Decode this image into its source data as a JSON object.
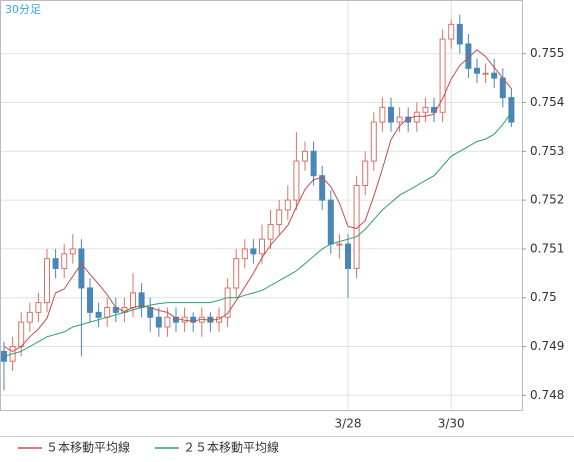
{
  "chart_data": {
    "type": "candlestick",
    "title": "30分足",
    "categories": [
      null,
      null,
      null,
      null,
      null,
      null,
      null,
      null,
      null,
      null,
      null,
      null,
      null,
      null,
      null,
      null,
      null,
      null,
      null,
      null,
      null,
      null,
      null,
      null,
      null,
      null,
      null,
      null,
      null,
      null,
      null,
      null,
      null,
      null,
      null,
      null,
      null,
      null,
      null,
      null,
      "3/28",
      null,
      null,
      null,
      null,
      null,
      null,
      null,
      null,
      null,
      null,
      null,
      "3/30",
      null,
      null,
      null,
      null,
      null,
      null,
      null
    ],
    "open": [
      0.7489,
      0.7487,
      0.749,
      0.7495,
      0.7497,
      0.7499,
      0.7508,
      0.7506,
      0.7509,
      0.751,
      0.7502,
      0.7497,
      0.7496,
      0.7498,
      0.7497,
      0.7498,
      0.7501,
      0.7498,
      0.7496,
      0.7494,
      0.7496,
      0.7495,
      0.7496,
      0.7495,
      0.7496,
      0.7495,
      0.7496,
      0.7502,
      0.7508,
      0.751,
      0.7509,
      0.7512,
      0.7515,
      0.7518,
      0.752,
      0.7528,
      0.753,
      0.7525,
      0.752,
      0.7511,
      0.7511,
      0.7506,
      0.7523,
      0.7528,
      0.7536,
      0.7539,
      0.7536,
      0.7537,
      0.7536,
      0.7538,
      0.7539,
      0.7538,
      0.7553,
      0.7556,
      0.7552,
      0.7547,
      0.7546,
      0.7546,
      0.7545,
      0.7541
    ],
    "high": [
      0.7491,
      0.7492,
      0.7497,
      0.7499,
      0.7501,
      0.751,
      0.751,
      0.7511,
      0.7513,
      0.7512,
      0.7504,
      0.7499,
      0.75,
      0.75,
      0.75,
      0.7505,
      0.7503,
      0.75,
      0.7498,
      0.7498,
      0.7498,
      0.7498,
      0.7497,
      0.7498,
      0.7497,
      0.7498,
      0.7504,
      0.751,
      0.7512,
      0.7512,
      0.7515,
      0.7518,
      0.752,
      0.7523,
      0.7534,
      0.7532,
      0.7532,
      0.7527,
      0.7522,
      0.7513,
      0.7513,
      0.7525,
      0.753,
      0.7538,
      0.7541,
      0.7541,
      0.7539,
      0.7539,
      0.754,
      0.7541,
      0.7541,
      0.7555,
      0.7557,
      0.7558,
      0.7554,
      0.7549,
      0.7548,
      0.7549,
      0.7547,
      0.7543
    ],
    "low": [
      0.7481,
      0.7485,
      0.7488,
      0.7493,
      0.7495,
      0.7497,
      0.7504,
      0.7504,
      0.7507,
      0.7488,
      0.7495,
      0.7494,
      0.7494,
      0.7495,
      0.7495,
      0.7496,
      0.7496,
      0.7493,
      0.7492,
      0.7492,
      0.7493,
      0.7493,
      0.7493,
      0.7492,
      0.7493,
      0.7493,
      0.7494,
      0.75,
      0.7506,
      0.7507,
      0.7507,
      0.751,
      0.7513,
      0.7516,
      0.7518,
      0.7526,
      0.7523,
      0.7518,
      0.7509,
      0.7508,
      0.75,
      0.7504,
      0.7521,
      0.7526,
      0.7534,
      0.7534,
      0.7534,
      0.7534,
      0.7534,
      0.7536,
      0.7536,
      0.7536,
      0.7551,
      0.755,
      0.7545,
      0.7544,
      0.7544,
      0.7543,
      0.7539,
      0.7535
    ],
    "close": [
      0.7487,
      0.749,
      0.7495,
      0.7497,
      0.7499,
      0.7508,
      0.7506,
      0.7509,
      0.751,
      0.7502,
      0.7497,
      0.7496,
      0.7498,
      0.7497,
      0.7498,
      0.7501,
      0.7498,
      0.7496,
      0.7494,
      0.7496,
      0.7495,
      0.7496,
      0.7495,
      0.7496,
      0.7495,
      0.7496,
      0.7502,
      0.7508,
      0.751,
      0.7509,
      0.7512,
      0.7515,
      0.7518,
      0.752,
      0.7528,
      0.753,
      0.7525,
      0.752,
      0.7511,
      0.7511,
      0.7506,
      0.7523,
      0.7528,
      0.7536,
      0.7539,
      0.7536,
      0.7537,
      0.7536,
      0.7538,
      0.7539,
      0.7538,
      0.7553,
      0.7556,
      0.7552,
      0.7547,
      0.7546,
      0.7546,
      0.7545,
      0.7541,
      0.7536
    ],
    "up_color": "#d9736a",
    "down_color": "#4a86b8",
    "series": [
      {
        "name": "５本移動平均線",
        "color": "#c0504d",
        "values": [
          0.749,
          0.7489,
          0.749,
          0.7492,
          0.74936,
          0.74958,
          0.7501,
          0.75018,
          0.75044,
          0.7507,
          0.75048,
          0.75028,
          0.75006,
          0.7498,
          0.74972,
          0.7498,
          0.74984,
          0.7498,
          0.74974,
          0.7497,
          0.74958,
          0.74954,
          0.74952,
          0.74956,
          0.74954,
          0.74956,
          0.74968,
          0.74994,
          0.75022,
          0.7505,
          0.75082,
          0.75108,
          0.75128,
          0.75148,
          0.75186,
          0.75222,
          0.75242,
          0.75246,
          0.75228,
          0.75194,
          0.75146,
          0.75142,
          0.75158,
          0.75208,
          0.75264,
          0.75324,
          0.75352,
          0.75368,
          0.75372,
          0.75372,
          0.75376,
          0.75408,
          0.75448,
          0.75476,
          0.75492,
          0.75508,
          0.75494,
          0.75472,
          0.7545,
          0.75428
        ]
      },
      {
        "name": "２５本移動平均線",
        "color": "#2e9e6e",
        "values": [
          0.7488,
          0.74885,
          0.7489,
          0.749,
          0.7491,
          0.7492,
          0.74925,
          0.7493,
          0.7494,
          0.74945,
          0.7495,
          0.74955,
          0.7496,
          0.74965,
          0.7497,
          0.74975,
          0.7498,
          0.74985,
          0.74988,
          0.7499,
          0.7499,
          0.7499,
          0.7499,
          0.7499,
          0.7499,
          0.74995,
          0.75,
          0.75,
          0.75005,
          0.7501,
          0.75015,
          0.75025,
          0.75035,
          0.75045,
          0.75055,
          0.7507,
          0.75085,
          0.751,
          0.7511,
          0.75115,
          0.7512,
          0.75125,
          0.7514,
          0.7516,
          0.7518,
          0.75195,
          0.7521,
          0.7522,
          0.7523,
          0.7524,
          0.7525,
          0.7527,
          0.7529,
          0.753,
          0.7531,
          0.7532,
          0.75325,
          0.75335,
          0.75355,
          0.7538
        ]
      }
    ],
    "ylim": [
      0.7477,
      0.7561
    ],
    "yticks": [
      0.748,
      0.749,
      0.75,
      0.751,
      0.752,
      0.753,
      0.754,
      0.755
    ],
    "grid": true
  }
}
